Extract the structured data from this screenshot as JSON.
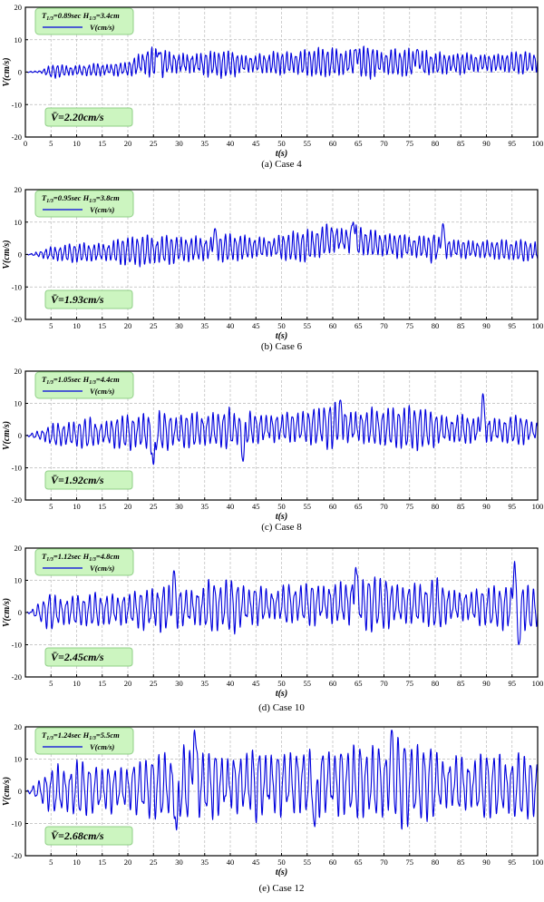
{
  "colors": {
    "series": "#0000dd",
    "box_fill": "#ccf5c0",
    "box_stroke": "#8fcf86",
    "grid": "#b9b9b9",
    "axis": "#000000"
  },
  "chart_data": [
    {
      "type": "line",
      "caption": "(a) Case 4",
      "legend_title_main": "T",
      "legend_title_sub1": "1/3",
      "legend_title_mid": "=0.89sec H",
      "legend_title_sub2": "1/3",
      "legend_title_tail": "=3.4cm",
      "legend_series": "V(cm/s)",
      "mean_label": "V̄=2.20cm/s",
      "mean": 2.2,
      "xlabel": "t(s)",
      "ylabel": "V(cm/s)",
      "xlim": [
        0,
        100
      ],
      "ylim": [
        -20,
        20
      ],
      "xticks": [
        "0",
        "5",
        "10",
        "15",
        "20",
        "25",
        "30",
        "35",
        "40",
        "45",
        "50",
        "55",
        "60",
        "65",
        "70",
        "75",
        "80",
        "85",
        "90",
        "95",
        "100"
      ],
      "yticks": [
        "20",
        "10",
        "0",
        "-10",
        "-20"
      ],
      "grid": true,
      "legend_position": "top-left",
      "series": [
        {
          "name": "V(cm/s)",
          "envelope": [
            [
              0,
              0.2
            ],
            [
              3,
              0.4
            ],
            [
              5,
              2
            ],
            [
              10,
              2
            ],
            [
              15,
              2.2
            ],
            [
              20,
              2.5
            ],
            [
              22,
              4
            ],
            [
              25,
              5
            ],
            [
              30,
              4.5
            ],
            [
              35,
              5
            ],
            [
              40,
              4
            ],
            [
              45,
              3.5
            ],
            [
              50,
              4
            ],
            [
              55,
              4
            ],
            [
              60,
              4.5
            ],
            [
              65,
              5
            ],
            [
              70,
              4
            ],
            [
              75,
              5
            ],
            [
              80,
              4
            ],
            [
              85,
              3.5
            ],
            [
              90,
              3
            ],
            [
              95,
              3
            ],
            [
              100,
              3.5
            ]
          ],
          "mean_profile": [
            [
              0,
              0
            ],
            [
              20,
              1
            ],
            [
              23,
              3
            ],
            [
              40,
              2.5
            ],
            [
              60,
              3
            ],
            [
              70,
              3
            ],
            [
              80,
              2.6
            ],
            [
              100,
              3
            ]
          ],
          "period": 0.89,
          "peaks": [
            {
              "x": 76.5,
              "y": 7
            },
            {
              "x": 64.5,
              "y": 7
            },
            {
              "x": 26,
              "y": 6
            }
          ]
        }
      ]
    },
    {
      "type": "line",
      "caption": "(b) Case 6",
      "legend_title_main": "T",
      "legend_title_sub1": "1/3",
      "legend_title_mid": "=0.95sec H",
      "legend_title_sub2": "1/3",
      "legend_title_tail": "=3.8cm",
      "legend_series": "V(cm/s)",
      "mean_label": "V̄=1.93cm/s",
      "mean": 1.93,
      "xlabel": "t(s)",
      "ylabel": "V(cm/s)",
      "xlim": [
        0,
        100
      ],
      "ylim": [
        -20,
        20
      ],
      "xticks": [
        "5",
        "10",
        "15",
        "20",
        "25",
        "30",
        "35",
        "40",
        "45",
        "50",
        "55",
        "60",
        "65",
        "70",
        "75",
        "80",
        "85",
        "90",
        "95",
        "100"
      ],
      "yticks": [
        "20",
        "10",
        "0",
        "-10",
        "-20"
      ],
      "grid": true,
      "legend_position": "top-left",
      "series": [
        {
          "name": "V(cm/s)",
          "envelope": [
            [
              0,
              0.2
            ],
            [
              3,
              1
            ],
            [
              5,
              3
            ],
            [
              10,
              3
            ],
            [
              20,
              4
            ],
            [
              25,
              5
            ],
            [
              30,
              4
            ],
            [
              35,
              5
            ],
            [
              40,
              4.5
            ],
            [
              45,
              3.5
            ],
            [
              50,
              4
            ],
            [
              55,
              5
            ],
            [
              60,
              5
            ],
            [
              65,
              5
            ],
            [
              70,
              4
            ],
            [
              75,
              4
            ],
            [
              80,
              4.5
            ],
            [
              85,
              3.5
            ],
            [
              90,
              3
            ],
            [
              95,
              3
            ],
            [
              100,
              3.5
            ]
          ],
          "mean_profile": [
            [
              0,
              0
            ],
            [
              20,
              1
            ],
            [
              40,
              2
            ],
            [
              55,
              2.5
            ],
            [
              60,
              5
            ],
            [
              65,
              4
            ],
            [
              70,
              3
            ],
            [
              80,
              2
            ],
            [
              100,
              1
            ]
          ],
          "period": 0.95,
          "peaks": [
            {
              "x": 64,
              "y": 10
            },
            {
              "x": 81.5,
              "y": 9.5
            },
            {
              "x": 37,
              "y": 8
            }
          ]
        }
      ]
    },
    {
      "type": "line",
      "caption": "(c) Case 8",
      "legend_title_main": "T",
      "legend_title_sub1": "1/3",
      "legend_title_mid": "=1.05sec H",
      "legend_title_sub2": "1/3",
      "legend_title_tail": "=4.4cm",
      "legend_series": "V(cm/s)",
      "mean_label": "V̄=1.92cm/s",
      "mean": 1.92,
      "xlabel": "t(s)",
      "ylabel": "V(cm/s)",
      "xlim": [
        0,
        100
      ],
      "ylim": [
        -20,
        20
      ],
      "xticks": [
        "5",
        "10",
        "15",
        "20",
        "25",
        "30",
        "35",
        "40",
        "45",
        "50",
        "55",
        "60",
        "65",
        "70",
        "75",
        "80",
        "85",
        "90",
        "95",
        "100"
      ],
      "yticks": [
        "20",
        "10",
        "0",
        "-10",
        "-20"
      ],
      "grid": true,
      "legend_position": "top-left",
      "series": [
        {
          "name": "V(cm/s)",
          "envelope": [
            [
              0,
              0.2
            ],
            [
              3,
              2
            ],
            [
              5,
              4
            ],
            [
              10,
              4
            ],
            [
              20,
              5
            ],
            [
              25,
              7
            ],
            [
              30,
              5
            ],
            [
              35,
              5.5
            ],
            [
              40,
              6.5
            ],
            [
              45,
              5
            ],
            [
              50,
              5
            ],
            [
              55,
              5
            ],
            [
              60,
              7
            ],
            [
              65,
              6
            ],
            [
              70,
              6
            ],
            [
              75,
              6.5
            ],
            [
              80,
              5
            ],
            [
              85,
              5
            ],
            [
              90,
              6
            ],
            [
              95,
              4.5
            ],
            [
              100,
              3.5
            ]
          ],
          "mean_profile": [
            [
              0,
              0
            ],
            [
              20,
              1
            ],
            [
              40,
              2
            ],
            [
              60,
              3
            ],
            [
              80,
              2
            ],
            [
              100,
              1.5
            ]
          ],
          "period": 1.05,
          "peaks": [
            {
              "x": 89.3,
              "y": 13
            },
            {
              "x": 61.5,
              "y": 11
            },
            {
              "x": 25,
              "y": -9
            },
            {
              "x": 42.5,
              "y": -8
            }
          ]
        }
      ]
    },
    {
      "type": "line",
      "caption": "(d) Case 10",
      "legend_title_main": "T",
      "legend_title_sub1": "1/3",
      "legend_title_mid": "=1.12sec H",
      "legend_title_sub2": "1/3",
      "legend_title_tail": "=4.8cm",
      "legend_series": "V(cm/s)",
      "mean_label": "V̄=2.45cm/s",
      "mean": 2.45,
      "xlabel": "t(s)",
      "ylabel": "V(cm/s)",
      "xlim": [
        0,
        100
      ],
      "ylim": [
        -20,
        20
      ],
      "xticks": [
        "5",
        "10",
        "15",
        "20",
        "25",
        "30",
        "35",
        "40",
        "45",
        "50",
        "55",
        "60",
        "65",
        "70",
        "75",
        "80",
        "85",
        "90",
        "95",
        "100"
      ],
      "yticks": [
        "20",
        "10",
        "0",
        "-10",
        "-20"
      ],
      "grid": true,
      "legend_position": "top-left",
      "series": [
        {
          "name": "V(cm/s)",
          "envelope": [
            [
              0,
              0.2
            ],
            [
              3,
              3
            ],
            [
              5,
              6
            ],
            [
              10,
              5
            ],
            [
              20,
              6
            ],
            [
              25,
              9
            ],
            [
              30,
              7
            ],
            [
              35,
              8
            ],
            [
              40,
              8
            ],
            [
              45,
              7
            ],
            [
              50,
              6
            ],
            [
              55,
              7
            ],
            [
              60,
              8
            ],
            [
              65,
              9
            ],
            [
              70,
              8
            ],
            [
              75,
              7
            ],
            [
              80,
              8
            ],
            [
              85,
              6
            ],
            [
              90,
              6
            ],
            [
              95,
              8
            ],
            [
              100,
              6
            ]
          ],
          "mean_profile": [
            [
              0,
              0
            ],
            [
              20,
              1
            ],
            [
              40,
              2
            ],
            [
              60,
              3
            ],
            [
              80,
              2.5
            ],
            [
              100,
              1
            ]
          ],
          "period": 1.12,
          "peaks": [
            {
              "x": 95.5,
              "y": 16
            },
            {
              "x": 64.5,
              "y": 14
            },
            {
              "x": 29,
              "y": 13
            },
            {
              "x": 96.3,
              "y": -10
            }
          ]
        }
      ]
    },
    {
      "type": "line",
      "caption": "(e) Case 12",
      "legend_title_main": "T",
      "legend_title_sub1": "1/3",
      "legend_title_mid": "=1.24sec H",
      "legend_title_sub2": "1/3",
      "legend_title_tail": "=5.5cm",
      "legend_series": "V(cm/s)",
      "mean_label": "V̄=2.68cm/s",
      "mean": 2.68,
      "xlabel": "t(s)",
      "ylabel": "V(cm/s)",
      "xlim": [
        0,
        100
      ],
      "ylim": [
        -20,
        20
      ],
      "xticks": [
        "5",
        "10",
        "15",
        "20",
        "25",
        "30",
        "35",
        "40",
        "45",
        "50",
        "55",
        "60",
        "65",
        "70",
        "75",
        "80",
        "85",
        "90",
        "95",
        "100"
      ],
      "yticks": [
        "20",
        "10",
        "0",
        "-10",
        "-20"
      ],
      "grid": true,
      "legend_position": "top-left",
      "series": [
        {
          "name": "V(cm/s)",
          "envelope": [
            [
              0,
              0.2
            ],
            [
              3,
              4
            ],
            [
              5,
              9
            ],
            [
              10,
              9
            ],
            [
              15,
              8
            ],
            [
              20,
              8
            ],
            [
              25,
              10
            ],
            [
              30,
              12
            ],
            [
              33,
              14
            ],
            [
              35,
              12
            ],
            [
              40,
              11
            ],
            [
              45,
              12
            ],
            [
              50,
              10
            ],
            [
              55,
              11
            ],
            [
              60,
              12
            ],
            [
              65,
              11
            ],
            [
              70,
              12
            ],
            [
              72,
              14
            ],
            [
              75,
              12
            ],
            [
              80,
              11
            ],
            [
              85,
              10
            ],
            [
              90,
              10
            ],
            [
              95,
              10
            ],
            [
              100,
              9
            ]
          ],
          "mean_profile": [
            [
              0,
              0
            ],
            [
              20,
              1
            ],
            [
              40,
              2.5
            ],
            [
              60,
              3
            ],
            [
              80,
              2.5
            ],
            [
              100,
              1
            ]
          ],
          "period": 1.24,
          "peaks": [
            {
              "x": 33,
              "y": 19
            },
            {
              "x": 71.5,
              "y": 19
            },
            {
              "x": 29.5,
              "y": -12
            },
            {
              "x": 56.5,
              "y": -11
            }
          ]
        }
      ]
    }
  ]
}
